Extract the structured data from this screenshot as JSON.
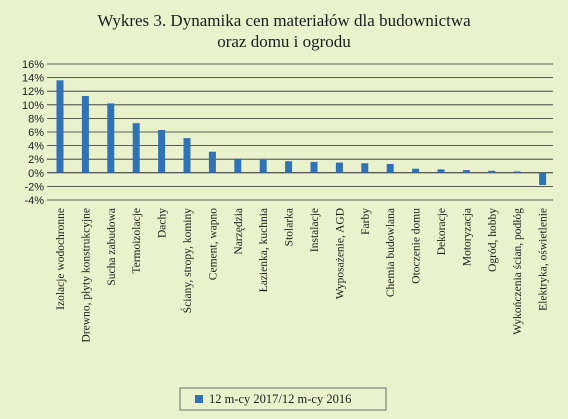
{
  "chart_data": {
    "type": "bar",
    "title_line1": "Wykres 3. Dynamika cen materiałów dla budownictwa",
    "title_line2": "oraz domu i ogrodu",
    "categories": [
      "Izolacje wodochronne",
      "Drewno, płyty konstrukcyjne",
      "Sucha zabudowa",
      "Termoizolacje",
      "Dachy",
      "Ściany, stropy, kominy",
      "Cement, wapno",
      "Narzędzia",
      "Łazienka, kuchnia",
      "Stolarka",
      "Instalacje",
      "Wyposażenie, AGD",
      "Farby",
      "Chemia budowlana",
      "Otoczenie domu",
      "Dekoracje",
      "Motoryzacja",
      "Ogród, hobby",
      "Wykończenia ścian, podłóg",
      "Elektryka, oświetlenie"
    ],
    "series": [
      {
        "name": "12 m-cy 2017/12 m-cy 2016",
        "values": [
          13.6,
          11.3,
          10.2,
          7.3,
          6.3,
          5.1,
          3.1,
          2.0,
          1.9,
          1.7,
          1.6,
          1.5,
          1.4,
          1.3,
          0.6,
          0.5,
          0.4,
          0.3,
          0.2,
          -1.8
        ]
      }
    ],
    "yticks": [
      "16%",
      "14%",
      "12%",
      "10%",
      "8%",
      "6%",
      "4%",
      "2%",
      "0%",
      "-2%",
      "-4%"
    ],
    "ylim": [
      -4,
      16
    ],
    "ytick_step": 2,
    "grid": true,
    "legend_position": "bottom-center",
    "colors": {
      "background": "#e9f2cc",
      "bar": "#2f73b6",
      "grid": "#2a2a2a",
      "text": "#1c1c1c"
    }
  }
}
